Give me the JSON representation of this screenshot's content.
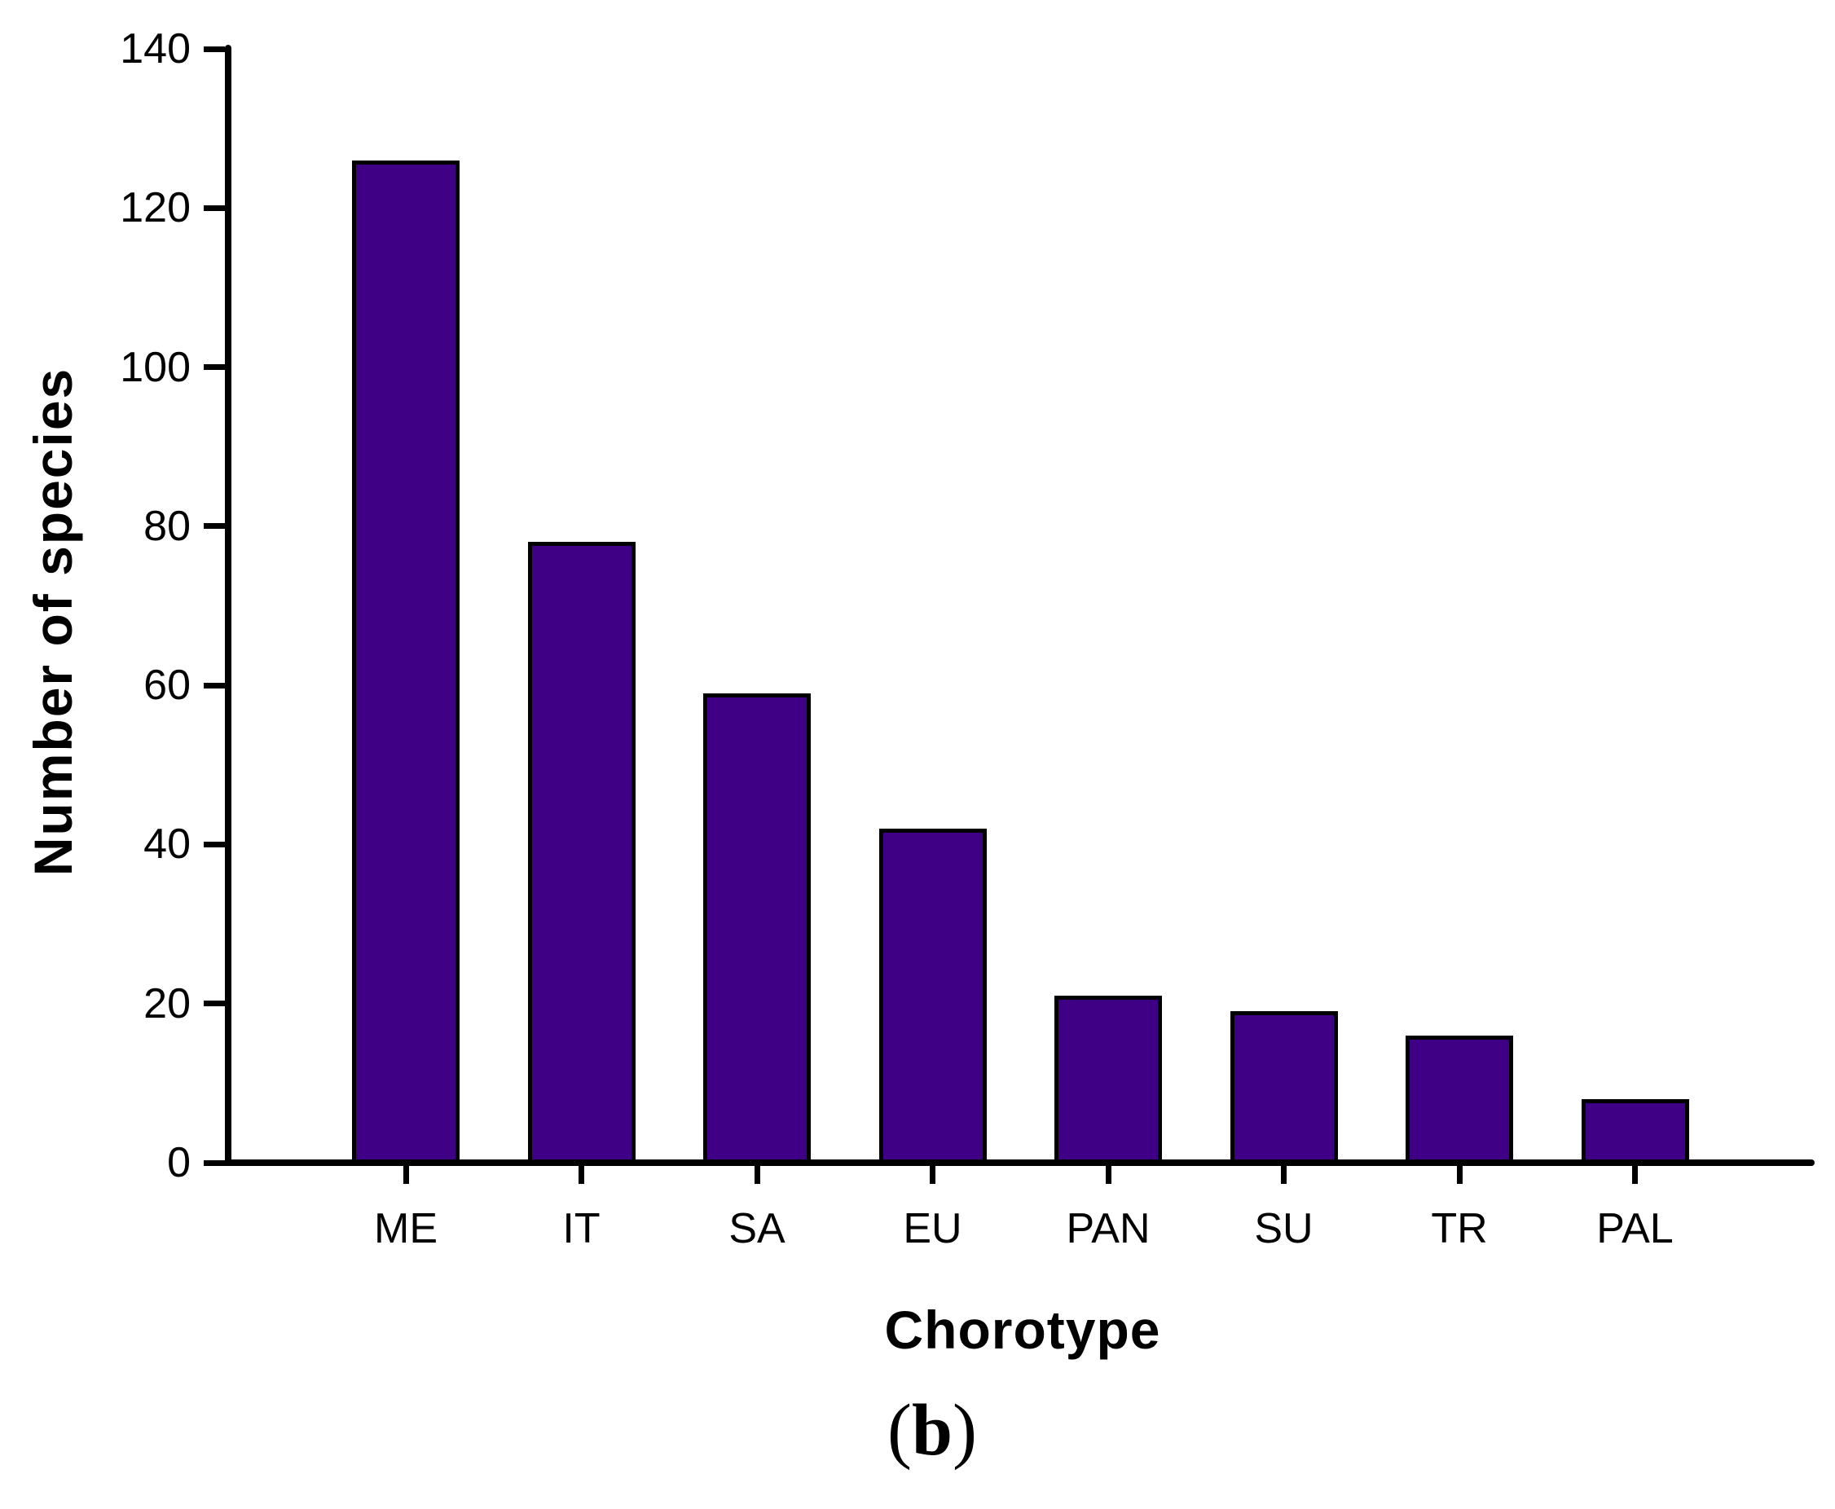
{
  "caption": {
    "open": "(",
    "letter": "b",
    "close": ")"
  },
  "chart_data": {
    "type": "bar",
    "title": "",
    "xlabel": "Chorotype",
    "ylabel": "Number of species",
    "categories": [
      "ME",
      "IT",
      "SA",
      "EU",
      "PAN",
      "SU",
      "TR",
      "PAL"
    ],
    "values": [
      126,
      78,
      59,
      42,
      21,
      19,
      16,
      8
    ],
    "ylim": [
      0,
      140
    ],
    "yticks": [
      0,
      20,
      40,
      60,
      80,
      100,
      120,
      140
    ],
    "grid": false,
    "legend": "none",
    "bar_color": "#400085",
    "bar_border_color": "#000000",
    "axis_color": "#000000",
    "text_color": "#000000",
    "background_color": "#ffffff"
  }
}
